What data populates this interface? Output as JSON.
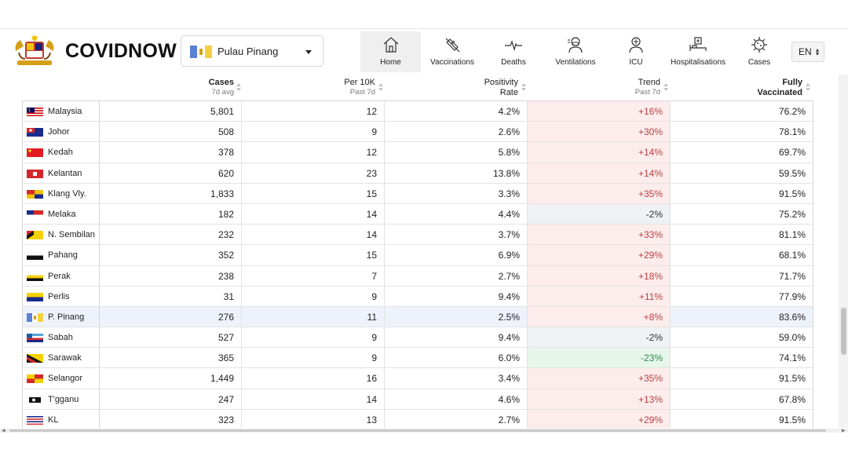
{
  "app": {
    "brand": "COVIDNOW"
  },
  "state_selector": {
    "selected": "Pulau Pinang"
  },
  "nav": [
    {
      "label": "Home",
      "icon": "home-icon",
      "active": true
    },
    {
      "label": "Vaccinations",
      "icon": "syringe-icon"
    },
    {
      "label": "Deaths",
      "icon": "heartbeat-icon"
    },
    {
      "label": "Ventilations",
      "icon": "ventilator-icon"
    },
    {
      "label": "ICU",
      "icon": "icu-icon"
    },
    {
      "label": "Hospitalisations",
      "icon": "hospital-bed-icon"
    },
    {
      "label": "Cases",
      "icon": "virus-icon"
    }
  ],
  "language": {
    "selected": "EN"
  },
  "table": {
    "headers": {
      "cases": {
        "title": "Cases",
        "sub": "7d avg"
      },
      "per10k": {
        "title": "Per 10K",
        "sub": "Past 7d"
      },
      "positivity": {
        "title": "Positivity",
        "sub": "Rate"
      },
      "trend": {
        "title": "Trend",
        "sub": "Past 7d"
      },
      "vaccinated": {
        "title": "Fully",
        "sub": "Vaccinated"
      }
    },
    "rows": [
      {
        "state": "Malaysia",
        "cases": "5,801",
        "per10k": "12",
        "positivity": "4.2%",
        "trend": "+16%",
        "trend_dir": "up",
        "vaccinated": "76.2%",
        "flag": "malaysia-flag"
      },
      {
        "state": "Johor",
        "cases": "508",
        "per10k": "9",
        "positivity": "2.6%",
        "trend": "+30%",
        "trend_dir": "up",
        "vaccinated": "78.1%",
        "flag": "johor-flag"
      },
      {
        "state": "Kedah",
        "cases": "378",
        "per10k": "12",
        "positivity": "5.8%",
        "trend": "+14%",
        "trend_dir": "up",
        "vaccinated": "69.7%",
        "flag": "kedah-flag"
      },
      {
        "state": "Kelantan",
        "cases": "620",
        "per10k": "23",
        "positivity": "13.8%",
        "trend": "+14%",
        "trend_dir": "up",
        "vaccinated": "59.5%",
        "flag": "kelantan-flag"
      },
      {
        "state": "Klang Vly.",
        "cases": "1,833",
        "per10k": "15",
        "positivity": "3.3%",
        "trend": "+35%",
        "trend_dir": "up",
        "vaccinated": "91.5%",
        "flag": "klang-valley-flag"
      },
      {
        "state": "Melaka",
        "cases": "182",
        "per10k": "14",
        "positivity": "4.4%",
        "trend": "-2%",
        "trend_dir": "flat",
        "vaccinated": "75.2%",
        "flag": "melaka-flag"
      },
      {
        "state": "N. Sembilan",
        "cases": "232",
        "per10k": "14",
        "positivity": "3.7%",
        "trend": "+33%",
        "trend_dir": "up",
        "vaccinated": "81.1%",
        "flag": "negeri-sembilan-flag"
      },
      {
        "state": "Pahang",
        "cases": "352",
        "per10k": "15",
        "positivity": "6.9%",
        "trend": "+29%",
        "trend_dir": "up",
        "vaccinated": "68.1%",
        "flag": "pahang-flag"
      },
      {
        "state": "Perak",
        "cases": "238",
        "per10k": "7",
        "positivity": "2.7%",
        "trend": "+18%",
        "trend_dir": "up",
        "vaccinated": "71.7%",
        "flag": "perak-flag"
      },
      {
        "state": "Perlis",
        "cases": "31",
        "per10k": "9",
        "positivity": "9.4%",
        "trend": "+11%",
        "trend_dir": "up",
        "vaccinated": "77.9%",
        "flag": "perlis-flag"
      },
      {
        "state": "P. Pinang",
        "cases": "276",
        "per10k": "11",
        "positivity": "2.5%",
        "trend": "+8%",
        "trend_dir": "up",
        "vaccinated": "83.6%",
        "flag": "penang-flag",
        "selected": true
      },
      {
        "state": "Sabah",
        "cases": "527",
        "per10k": "9",
        "positivity": "9.4%",
        "trend": "-2%",
        "trend_dir": "flat",
        "vaccinated": "59.0%",
        "flag": "sabah-flag"
      },
      {
        "state": "Sarawak",
        "cases": "365",
        "per10k": "9",
        "positivity": "6.0%",
        "trend": "-23%",
        "trend_dir": "down",
        "vaccinated": "74.1%",
        "flag": "sarawak-flag"
      },
      {
        "state": "Selangor",
        "cases": "1,449",
        "per10k": "16",
        "positivity": "3.4%",
        "trend": "+35%",
        "trend_dir": "up",
        "vaccinated": "91.5%",
        "flag": "selangor-flag"
      },
      {
        "state": "T'gganu",
        "cases": "247",
        "per10k": "14",
        "positivity": "4.6%",
        "trend": "+13%",
        "trend_dir": "up",
        "vaccinated": "67.8%",
        "flag": "terengganu-flag"
      },
      {
        "state": "KL",
        "cases": "323",
        "per10k": "13",
        "positivity": "2.7%",
        "trend": "+29%",
        "trend_dir": "up",
        "vaccinated": "91.5%",
        "flag": "kuala-lumpur-flag"
      }
    ]
  },
  "colors": {
    "trend_up_bg": "#fdecec",
    "trend_up_text": "#b94040",
    "trend_down_bg": "#e6f6ea",
    "trend_down_text": "#2d8a4a",
    "trend_flat_bg": "#f0f1f4",
    "selected_row_bg": "#eef2fb"
  }
}
